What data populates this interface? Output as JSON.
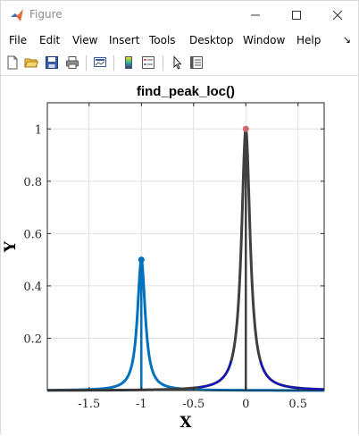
{
  "window": {
    "title": "Figure",
    "controls": {
      "minimize": "—",
      "maximize": "☐",
      "close": "✕"
    }
  },
  "menu": {
    "items": [
      "File",
      "Edit",
      "View",
      "Insert",
      "Tools",
      "Desktop",
      "Window",
      "Help"
    ],
    "overflow_icon": "↘"
  },
  "toolbar": {
    "icons": [
      "new-figure-icon",
      "open-file-icon",
      "save-icon",
      "print-icon",
      "link-plot-icon",
      "insert-colorbar-icon",
      "insert-legend-icon",
      "edit-plot-arrow-icon",
      "property-inspector-icon"
    ]
  },
  "chart_data": {
    "type": "line",
    "title": "find_peak_loc()",
    "xlabel": "X",
    "ylabel": "Y",
    "xlim": [
      -1.9,
      0.75
    ],
    "ylim": [
      0,
      1.1
    ],
    "xticks": [
      -1.5,
      -1,
      -0.5,
      0,
      0.5
    ],
    "xtick_labels": [
      "-1.5",
      "-1",
      "-0.5",
      "0",
      "0.5"
    ],
    "yticks": [
      0.2,
      0.4,
      0.6,
      0.8,
      1
    ],
    "ytick_labels": [
      "0.2",
      "0.4",
      "0.6",
      "0.8",
      "1"
    ],
    "grid": true,
    "series": [
      {
        "kind": "lorentzian",
        "center": -1,
        "height": 0.5,
        "halfwidth": 0.045,
        "color": "#0072bd",
        "peak_marker_color": "#0072bd"
      },
      {
        "kind": "lorentzian",
        "center": 0,
        "height": 1,
        "halfwidth": 0.05,
        "color": "#404040",
        "peak_marker_color": "#d06a6a",
        "tail_color": "#0000ff"
      }
    ]
  },
  "colors": {
    "axes_grid": "#e0e0e0",
    "window_border": "#d8d8d8"
  }
}
